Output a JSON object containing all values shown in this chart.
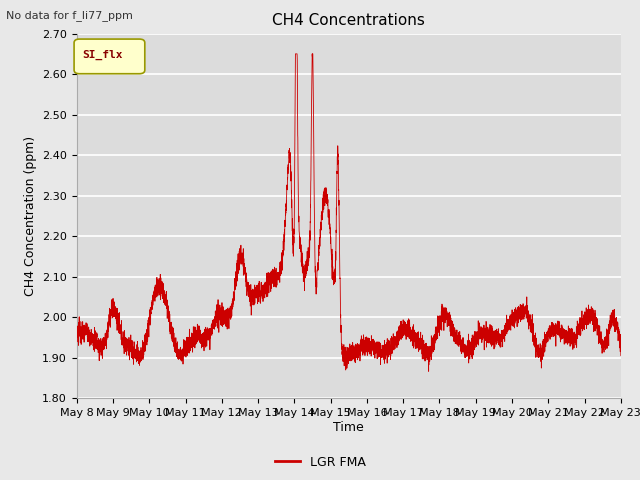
{
  "title": "CH4 Concentrations",
  "ylabel": "CH4 Concentration (ppm)",
  "xlabel": "Time",
  "top_left_text": "No data for f_li77_ppm",
  "legend_label": "LGR FMA",
  "legend_patch_label": "SI_flx",
  "ylim": [
    1.8,
    2.7
  ],
  "yticks": [
    1.8,
    1.9,
    2.0,
    2.1,
    2.2,
    2.3,
    2.4,
    2.5,
    2.6,
    2.7
  ],
  "line_color": "#cc0000",
  "fig_facecolor": "#e8e8e8",
  "plot_bg_color": "#dcdcdc",
  "grid_color": "#ffffff",
  "patch_facecolor": "#ffffcc",
  "patch_edgecolor": "#999900",
  "title_fontsize": 11,
  "label_fontsize": 9,
  "tick_fontsize": 8
}
